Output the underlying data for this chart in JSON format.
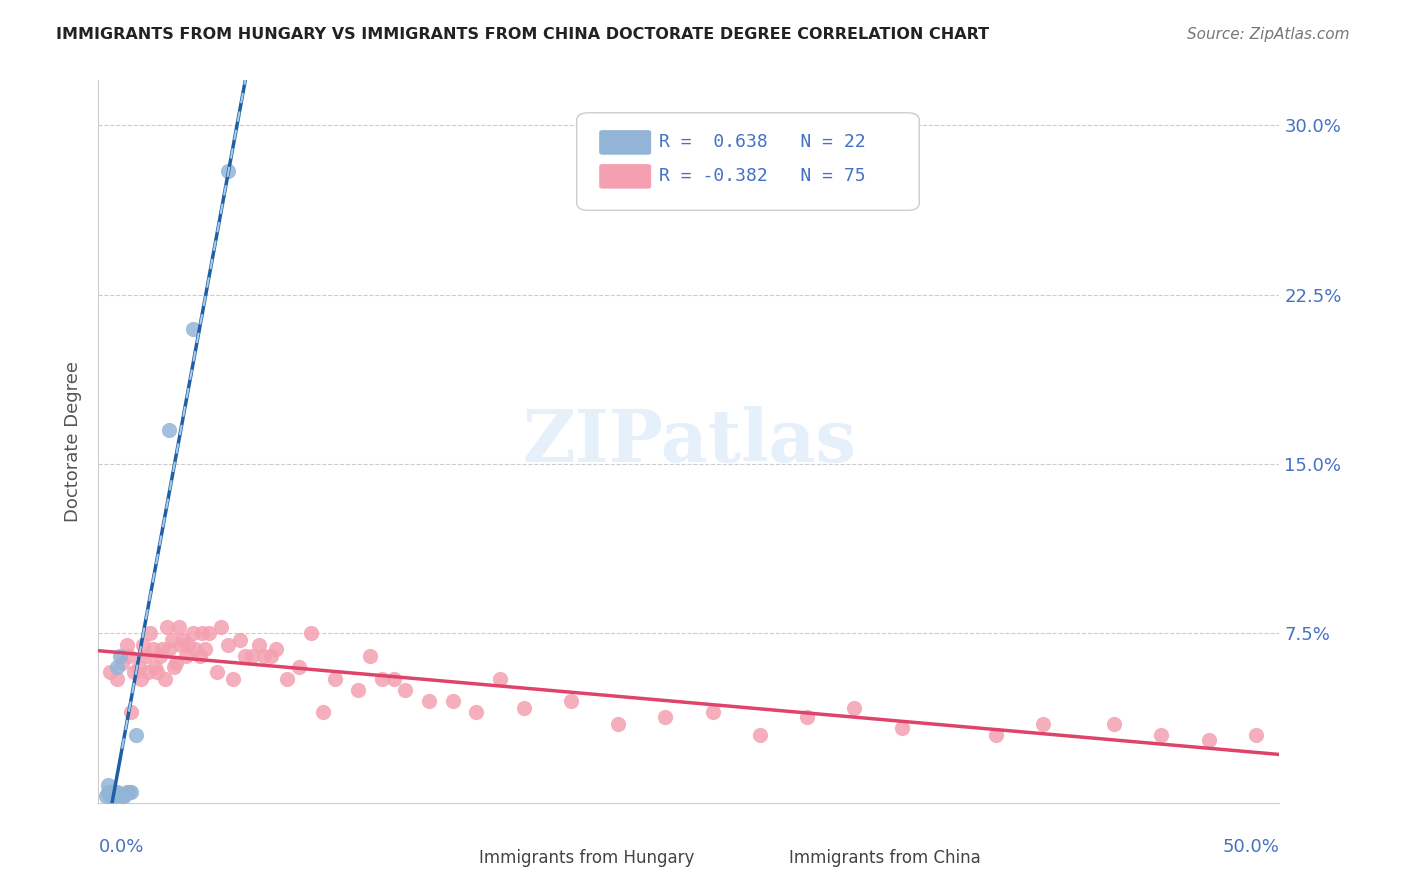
{
  "title": "IMMIGRANTS FROM HUNGARY VS IMMIGRANTS FROM CHINA DOCTORATE DEGREE CORRELATION CHART",
  "source": "Source: ZipAtlas.com",
  "ylabel": "Doctorate Degree",
  "ytick_values": [
    0,
    0.075,
    0.15,
    0.225,
    0.3
  ],
  "ytick_labels": [
    "",
    "7.5%",
    "15.0%",
    "22.5%",
    "30.0%"
  ],
  "xlim": [
    0,
    0.5
  ],
  "ylim": [
    0,
    0.32
  ],
  "legend_r_hungary": "R =  0.638",
  "legend_n_hungary": "N = 22",
  "legend_r_china": "R = -0.382",
  "legend_n_china": "N = 75",
  "hungary_color": "#92b4d7",
  "china_color": "#f4a0b0",
  "hungary_line_color": "#1f5fa6",
  "china_line_color": "#e0436a",
  "hungary_dashed_color": "#a8cce8",
  "axis_label_color": "#4472c4",
  "watermark": "ZIPatlas",
  "hungary_scatter_x": [
    0.003,
    0.004,
    0.004,
    0.005,
    0.005,
    0.006,
    0.006,
    0.007,
    0.007,
    0.008,
    0.008,
    0.009,
    0.009,
    0.01,
    0.011,
    0.012,
    0.013,
    0.014,
    0.016,
    0.03,
    0.04,
    0.055
  ],
  "hungary_scatter_y": [
    0.003,
    0.005,
    0.008,
    0.003,
    0.005,
    0.003,
    0.005,
    0.003,
    0.005,
    0.005,
    0.06,
    0.065,
    0.004,
    0.003,
    0.003,
    0.005,
    0.005,
    0.005,
    0.03,
    0.165,
    0.21,
    0.28
  ],
  "china_scatter_x": [
    0.005,
    0.008,
    0.01,
    0.012,
    0.013,
    0.014,
    0.015,
    0.017,
    0.018,
    0.019,
    0.02,
    0.021,
    0.022,
    0.023,
    0.024,
    0.025,
    0.026,
    0.027,
    0.028,
    0.029,
    0.03,
    0.031,
    0.032,
    0.033,
    0.034,
    0.035,
    0.036,
    0.037,
    0.038,
    0.04,
    0.041,
    0.043,
    0.044,
    0.045,
    0.047,
    0.05,
    0.052,
    0.055,
    0.057,
    0.06,
    0.062,
    0.065,
    0.068,
    0.07,
    0.073,
    0.075,
    0.08,
    0.085,
    0.09,
    0.095,
    0.1,
    0.11,
    0.115,
    0.12,
    0.125,
    0.13,
    0.14,
    0.15,
    0.16,
    0.17,
    0.18,
    0.2,
    0.22,
    0.24,
    0.26,
    0.28,
    0.3,
    0.32,
    0.34,
    0.38,
    0.4,
    0.43,
    0.45,
    0.47,
    0.49
  ],
  "china_scatter_y": [
    0.058,
    0.055,
    0.062,
    0.07,
    0.065,
    0.04,
    0.058,
    0.06,
    0.055,
    0.07,
    0.065,
    0.058,
    0.075,
    0.068,
    0.06,
    0.058,
    0.065,
    0.068,
    0.055,
    0.078,
    0.068,
    0.072,
    0.06,
    0.062,
    0.078,
    0.07,
    0.072,
    0.065,
    0.07,
    0.075,
    0.068,
    0.065,
    0.075,
    0.068,
    0.075,
    0.058,
    0.078,
    0.07,
    0.055,
    0.072,
    0.065,
    0.065,
    0.07,
    0.065,
    0.065,
    0.068,
    0.055,
    0.06,
    0.075,
    0.04,
    0.055,
    0.05,
    0.065,
    0.055,
    0.055,
    0.05,
    0.045,
    0.045,
    0.04,
    0.055,
    0.042,
    0.045,
    0.035,
    0.038,
    0.04,
    0.03,
    0.038,
    0.042,
    0.033,
    0.03,
    0.035,
    0.035,
    0.03,
    0.028,
    0.03
  ]
}
